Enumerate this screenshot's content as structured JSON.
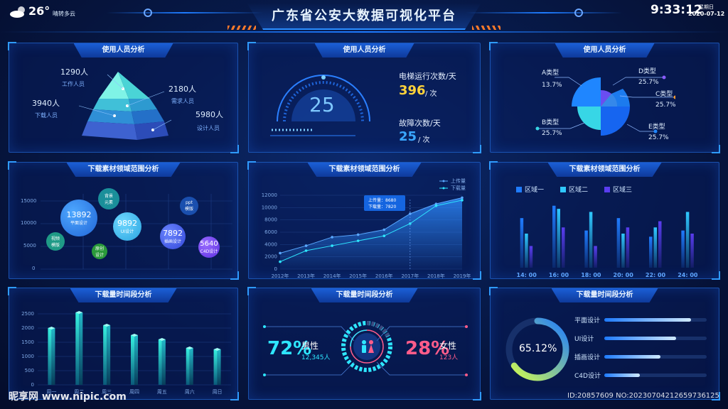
{
  "header": {
    "temp": "26°",
    "weather": "晴转多云",
    "title": "广东省公安大数据可视化平台",
    "time": "9:33:12",
    "weekday": "星期日",
    "date": "2020-07-12"
  },
  "panels": {
    "p1": {
      "title": "使用人员分析"
    },
    "p2": {
      "title": "使用人员分析"
    },
    "p3": {
      "title": "使用人员分析"
    },
    "p4": {
      "title": "下载素材领域范围分析"
    },
    "p5": {
      "title": "下载素材领域范围分析"
    },
    "p6": {
      "title": "下载素材领域范围分析"
    },
    "p7": {
      "title": "下载量时间段分析"
    },
    "p8": {
      "title": "下载量时间段分析"
    },
    "p9": {
      "title": "下载量时间段分析"
    }
  },
  "pyramid": {
    "items": [
      {
        "value": "1290人",
        "label": "工作人员"
      },
      {
        "value": "2180人",
        "label": "需求人员"
      },
      {
        "value": "3940人",
        "label": "下载人员"
      },
      {
        "value": "5980人",
        "label": "设计人员"
      }
    ]
  },
  "gauge": {
    "value": "25",
    "runs_label": "电梯运行次数/天",
    "runs_value": "396",
    "runs_unit": "/ 次",
    "fault_label": "故障次数/天",
    "fault_value": "25",
    "fault_unit": "/ 次"
  },
  "pie": {
    "labels": [
      {
        "name": "A类型",
        "pct": "13.7%"
      },
      {
        "name": "D类型",
        "pct": "25.7%"
      },
      {
        "name": "C类型",
        "pct": "25.7%"
      },
      {
        "name": "B类型",
        "pct": "25.7%"
      },
      {
        "name": "E类型",
        "pct": "25.7%"
      }
    ]
  },
  "bubbles": {
    "yticks": [
      "15000",
      "10000",
      "5000",
      "0"
    ],
    "items": [
      {
        "value": "13892",
        "label": "平面设计"
      },
      {
        "value": "",
        "label": "背景\n元素"
      },
      {
        "value": "",
        "label": "ppt\n模版"
      },
      {
        "value": "9892",
        "label": "UI设计"
      },
      {
        "value": "7892",
        "label": "插画设计"
      },
      {
        "value": "5640",
        "label": "C4D设计"
      },
      {
        "value": "",
        "label": "视频\n模版"
      },
      {
        "value": "",
        "label": "原创\n设计"
      }
    ]
  },
  "chart_data": [
    {
      "type": "line",
      "title": "",
      "x": [
        "2012年",
        "2013年",
        "2014年",
        "2015年",
        "2016年",
        "2017年",
        "2018年",
        "2019年"
      ],
      "ylim": [
        0,
        12000
      ],
      "yticks": [
        0,
        2000,
        4000,
        6000,
        8000,
        10000,
        12000
      ],
      "legend": "top-right",
      "series": [
        {
          "name": "上传量",
          "values": [
            2600,
            3800,
            5200,
            5600,
            6400,
            9000,
            10600,
            11600
          ]
        },
        {
          "name": "下载量",
          "values": [
            1200,
            3000,
            3800,
            4600,
            5400,
            7400,
            10300,
            11200
          ]
        }
      ],
      "tooltip": [
        "上传量：8680",
        "下载量：7820"
      ]
    },
    {
      "type": "bar",
      "categories": [
        "14: 00",
        "16: 00",
        "18: 00",
        "20: 00",
        "22: 00",
        "24: 00"
      ],
      "legend": "top",
      "series": [
        {
          "name": "区域一",
          "values": [
            8,
            10,
            6,
            8,
            5,
            6
          ]
        },
        {
          "name": "区域二",
          "values": [
            5.5,
            9.5,
            9,
            5.5,
            6.5,
            9
          ]
        },
        {
          "name": "区域三",
          "values": [
            3.5,
            6.5,
            3.5,
            6.5,
            7.5,
            5.5
          ]
        }
      ],
      "colors": [
        "#1f7cff",
        "#2fc8ff",
        "#5a3df0"
      ]
    },
    {
      "type": "bar",
      "categories": [
        "周一",
        "周二",
        "周三",
        "周四",
        "周五",
        "周六",
        "周日"
      ],
      "values": [
        2000,
        2550,
        2100,
        1750,
        1600,
        1300,
        1250
      ],
      "ylim": [
        0,
        2500
      ],
      "yticks": [
        0,
        500,
        1000,
        1500,
        2000,
        2500
      ]
    }
  ],
  "gender": {
    "male_pct": "72%",
    "male_label": "男性",
    "male_count": "12,345人",
    "female_pct": "28%",
    "female_label": "女性",
    "female_count": "123人"
  },
  "progress": {
    "ring_value": "65.12%",
    "ring_fraction": 0.6512,
    "items": [
      {
        "label": "平面设计",
        "fraction": 0.85
      },
      {
        "label": "UI设计",
        "fraction": 0.7
      },
      {
        "label": "插画设计",
        "fraction": 0.55
      },
      {
        "label": "C4D设计",
        "fraction": 0.35
      }
    ]
  },
  "watermark": {
    "logo": "昵享网 www.nipic.com",
    "id": "ID:20857609 NO:20230704212659736125"
  },
  "colors": {
    "accent": "#1e7bff",
    "yellow": "#ffd23a",
    "cyan": "#2ee6ff",
    "pink": "#ff5c8a"
  }
}
